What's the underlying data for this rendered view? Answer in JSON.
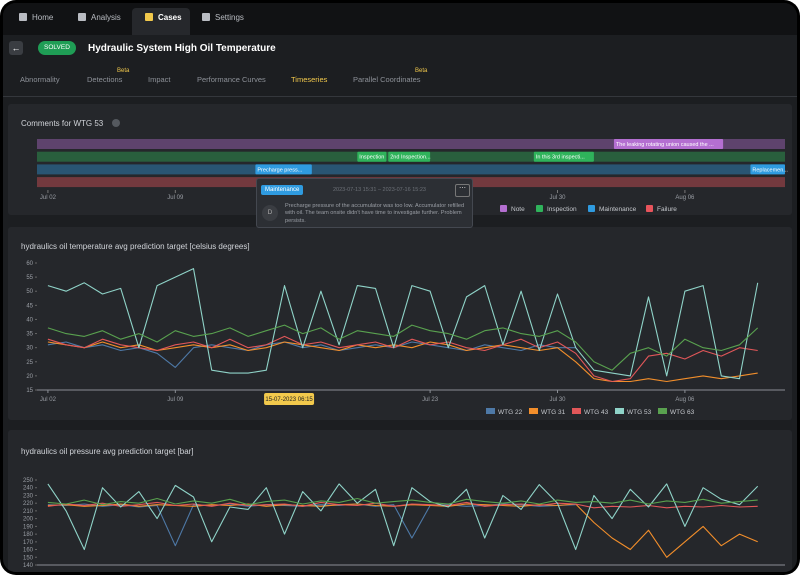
{
  "nav": {
    "tabs": [
      "Home",
      "Analysis",
      "Cases",
      "Settings"
    ],
    "active": 2
  },
  "case": {
    "status": "SOLVED",
    "title": "Hydraulic System High Oil Temperature"
  },
  "subtabs": [
    {
      "label": "Abnormality"
    },
    {
      "label": "Detections",
      "badge": "Beta"
    },
    {
      "label": "Impact"
    },
    {
      "label": "Performance Curves"
    },
    {
      "label": "Timeseries"
    },
    {
      "label": "Parallel Coordinates",
      "badge": "Beta"
    }
  ],
  "active_subtab": 4,
  "comments": {
    "title": "Comments for WTG 53",
    "xlim": [
      -0.6,
      40.5
    ],
    "xticks": [
      {
        "value": 0,
        "label": "Jul 02"
      },
      {
        "value": 7,
        "label": "Jul 09"
      },
      {
        "value": 28,
        "label": "Jul 30"
      },
      {
        "value": 35,
        "label": "Aug 06"
      }
    ],
    "rows": [
      {
        "name": "Note",
        "color": "#b46fd1",
        "items": [
          {
            "label": "The leaking rotating union caused the ...",
            "start": 31.1,
            "end": 37.1
          }
        ]
      },
      {
        "name": "Inspection",
        "color": "#2fb35b",
        "items": [
          {
            "label": "Inspection",
            "start": 17.0,
            "end": 18.6
          },
          {
            "label": "2nd Inspection...",
            "start": 18.7,
            "end": 21.0
          },
          {
            "label": "In this 3rd inspecti...",
            "start": 26.7,
            "end": 30.0
          }
        ]
      },
      {
        "name": "Maintenance",
        "color": "#2f9be0",
        "items": [
          {
            "label": "Precharge press...",
            "start": 11.4,
            "end": 14.5
          },
          {
            "label": "Replacemen...",
            "start": 38.6,
            "end": 40.5
          }
        ]
      },
      {
        "name": "Failure",
        "color": "#e8545c",
        "items": []
      }
    ],
    "popup": {
      "tag": "Maintenance",
      "time": "2023-07-13 15:31 – 2023-07-16 15:23",
      "author": "D",
      "text": "Precharge pressure of the accumulator was too low. Accumulator refilled with oil. The team onsite didn't have time to investigate further. Problem persists."
    }
  },
  "chart_data": [
    {
      "type": "line",
      "title": "hydraulics oil temperature avg prediction target [celsius degrees]",
      "x": [
        0,
        1,
        2,
        3,
        4,
        5,
        6,
        7,
        8,
        9,
        10,
        11,
        12,
        13,
        14,
        15,
        16,
        17,
        18,
        19,
        20,
        21,
        22,
        23,
        24,
        25,
        26,
        27,
        28,
        29,
        30,
        31,
        32,
        33,
        34,
        35,
        36,
        37,
        38,
        39
      ],
      "xlim": [
        -0.6,
        40.5
      ],
      "xticks": [
        {
          "value": 0,
          "label": "Jul 02"
        },
        {
          "value": 7,
          "label": "Jul 09"
        },
        {
          "value": 21,
          "label": "Jul 23"
        },
        {
          "value": 28,
          "label": "Jul 30"
        },
        {
          "value": 35,
          "label": "Aug 06"
        }
      ],
      "ylim": [
        15,
        60
      ],
      "yticks": [
        15,
        20,
        25,
        30,
        35,
        40,
        45,
        50,
        55,
        60
      ],
      "annotation": {
        "x": 13.25,
        "label": "15-07-2023 06:15"
      },
      "legend": "bottom-right",
      "series": [
        {
          "name": "WTG 22",
          "color": "#4e79a7",
          "values": [
            31,
            32,
            30,
            31,
            29,
            30,
            28,
            23,
            30,
            31,
            30,
            29,
            31,
            32,
            30,
            31,
            29,
            30,
            31,
            30,
            32,
            31,
            30,
            29,
            31,
            30,
            29,
            31,
            30,
            30,
            null,
            null,
            null,
            null,
            null,
            null,
            null,
            null,
            null,
            null
          ]
        },
        {
          "name": "WTG 31",
          "color": "#f28e2b",
          "values": [
            32,
            31,
            30,
            32,
            30,
            31,
            29,
            30,
            31,
            30,
            31,
            29,
            30,
            32,
            31,
            30,
            29,
            31,
            30,
            31,
            30,
            32,
            31,
            29,
            30,
            31,
            30,
            29,
            30,
            25,
            19,
            18,
            18,
            19,
            18,
            19,
            20,
            19,
            20,
            21
          ]
        },
        {
          "name": "WTG 43",
          "color": "#e15759",
          "values": [
            33,
            31,
            30,
            33,
            31,
            30,
            29,
            31,
            32,
            30,
            33,
            30,
            31,
            34,
            31,
            32,
            30,
            31,
            32,
            30,
            33,
            31,
            32,
            30,
            29,
            31,
            33,
            30,
            32,
            28,
            20,
            18,
            19,
            27,
            28,
            26,
            29,
            27,
            30,
            29
          ]
        },
        {
          "name": "WTG 53",
          "color": "#8fd3c8",
          "values": [
            52,
            50,
            53,
            49,
            51,
            30,
            52,
            55,
            58,
            22,
            21,
            21,
            22,
            52,
            30,
            50,
            31,
            52,
            51,
            30,
            52,
            50,
            30,
            48,
            52,
            31,
            50,
            29,
            49,
            30,
            22,
            21,
            20,
            48,
            20,
            50,
            52,
            20,
            19,
            53
          ]
        },
        {
          "name": "WTG 63",
          "color": "#59a14f",
          "values": [
            37,
            35,
            34,
            36,
            33,
            35,
            32,
            36,
            34,
            35,
            37,
            34,
            36,
            38,
            35,
            37,
            33,
            36,
            35,
            34,
            38,
            36,
            35,
            33,
            36,
            37,
            35,
            34,
            36,
            32,
            25,
            22,
            28,
            30,
            27,
            33,
            30,
            29,
            31,
            37
          ]
        }
      ]
    },
    {
      "type": "line",
      "title": "hydraulics oil pressure avg prediction target [bar]",
      "x": [
        0,
        1,
        2,
        3,
        4,
        5,
        6,
        7,
        8,
        9,
        10,
        11,
        12,
        13,
        14,
        15,
        16,
        17,
        18,
        19,
        20,
        21,
        22,
        23,
        24,
        25,
        26,
        27,
        28,
        29,
        30,
        31,
        32,
        33,
        34,
        35,
        36,
        37,
        38,
        39
      ],
      "xlim": [
        -0.6,
        40.5
      ],
      "ylim": [
        140,
        250
      ],
      "yticks": [
        140,
        150,
        160,
        170,
        180,
        190,
        200,
        210,
        220,
        230,
        240,
        250
      ],
      "series": [
        {
          "name": "WTG 22",
          "color": "#4e79a7",
          "values": [
            218,
            217,
            219,
            216,
            218,
            215,
            217,
            165,
            218,
            217,
            219,
            216,
            218,
            217,
            216,
            218,
            217,
            219,
            216,
            218,
            175,
            217,
            218,
            216,
            217,
            219,
            218,
            216,
            217,
            218,
            null,
            null,
            null,
            null,
            null,
            null,
            null,
            null,
            null,
            null
          ]
        },
        {
          "name": "WTG 31",
          "color": "#f28e2b",
          "values": [
            217,
            218,
            216,
            217,
            219,
            216,
            218,
            217,
            216,
            218,
            217,
            219,
            216,
            218,
            217,
            216,
            218,
            219,
            217,
            216,
            218,
            217,
            216,
            219,
            218,
            217,
            216,
            218,
            217,
            219,
            195,
            175,
            160,
            185,
            150,
            170,
            190,
            165,
            180,
            170
          ]
        },
        {
          "name": "WTG 43",
          "color": "#e15759",
          "values": [
            216,
            219,
            217,
            220,
            216,
            218,
            221,
            217,
            219,
            216,
            220,
            217,
            218,
            219,
            216,
            221,
            218,
            217,
            220,
            216,
            219,
            218,
            217,
            221,
            216,
            218,
            219,
            217,
            220,
            219,
            214,
            216,
            215,
            217,
            214,
            216,
            215,
            217,
            215,
            216
          ]
        },
        {
          "name": "WTG 53",
          "color": "#8fd3c8",
          "values": [
            245,
            210,
            160,
            240,
            215,
            235,
            200,
            243,
            228,
            170,
            215,
            212,
            240,
            180,
            235,
            210,
            245,
            220,
            238,
            165,
            240,
            222,
            215,
            238,
            175,
            230,
            212,
            244,
            220,
            160,
            230,
            200,
            238,
            215,
            245,
            190,
            240,
            225,
            218,
            242
          ]
        },
        {
          "name": "WTG 63",
          "color": "#59a14f",
          "values": [
            221,
            219,
            224,
            218,
            222,
            220,
            226,
            219,
            223,
            220,
            225,
            218,
            222,
            224,
            219,
            223,
            221,
            226,
            220,
            222,
            224,
            221,
            219,
            225,
            222,
            220,
            223,
            219,
            224,
            221,
            222,
            220,
            224,
            219,
            223,
            221,
            225,
            220,
            222,
            224
          ]
        }
      ]
    }
  ]
}
